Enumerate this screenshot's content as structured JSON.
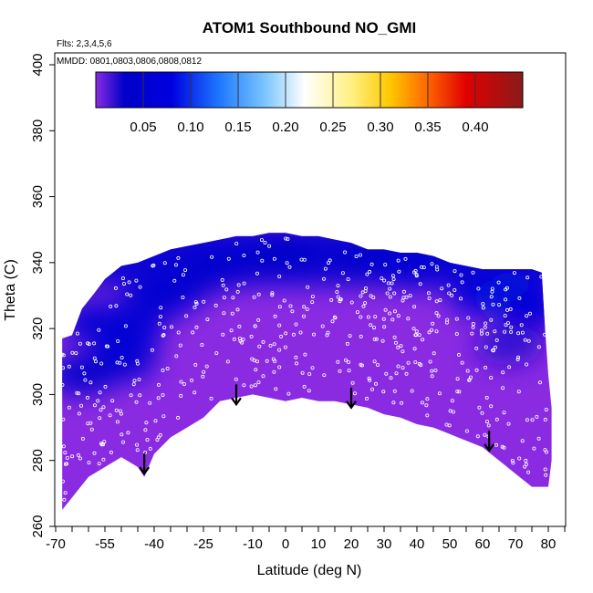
{
  "chart_data": {
    "type": "heatmap",
    "title": "ATOM1 Southbound NO_GMI",
    "subtitle_flights": "Flts: 2,3,4,5,6",
    "subtitle_dates": "MMDD: 0801,0803,0806,0808,0812",
    "xlabel": "Latitude (deg N)",
    "ylabel": "Theta (C)",
    "xlim": [
      -70,
      85
    ],
    "ylim": [
      260,
      402
    ],
    "x_ticks": [
      -70,
      -55,
      -40,
      -25,
      -10,
      0,
      10,
      20,
      30,
      40,
      50,
      60,
      70,
      80
    ],
    "x_tick_labels": [
      "-70",
      "-55",
      "-40",
      "-25",
      "-10",
      "0",
      "10",
      "20",
      "30",
      "40",
      "50",
      "60",
      "70",
      "80"
    ],
    "x_minor_ticks": [
      -65,
      -60,
      -50,
      -45,
      -35,
      -30,
      -20,
      -15,
      -5,
      5,
      15,
      25,
      35,
      45,
      55,
      65,
      75,
      85
    ],
    "y_ticks": [
      260,
      280,
      300,
      320,
      340,
      360,
      380,
      400
    ],
    "y_tick_labels": [
      "260",
      "280",
      "300",
      "320",
      "340",
      "360",
      "380",
      "400"
    ],
    "colorbar": {
      "range": [
        0.0,
        0.45
      ],
      "ticks": [
        0.05,
        0.1,
        0.15,
        0.2,
        0.25,
        0.3,
        0.35,
        0.4
      ],
      "tick_labels": [
        "0.05",
        "0.10",
        "0.15",
        "0.20",
        "0.25",
        "0.30",
        "0.35",
        "0.40"
      ],
      "stops": [
        {
          "v": 0.0,
          "c": "#8a2be2"
        },
        {
          "v": 0.03,
          "c": "#0000c8"
        },
        {
          "v": 0.08,
          "c": "#0000e0"
        },
        {
          "v": 0.13,
          "c": "#1e78ff"
        },
        {
          "v": 0.18,
          "c": "#7fc8ff"
        },
        {
          "v": 0.22,
          "c": "#ffffff"
        },
        {
          "v": 0.27,
          "c": "#fff080"
        },
        {
          "v": 0.31,
          "c": "#ffc800"
        },
        {
          "v": 0.35,
          "c": "#ff6400"
        },
        {
          "v": 0.39,
          "c": "#e00000"
        },
        {
          "v": 0.45,
          "c": "#8b1a1a"
        }
      ]
    },
    "tropopause_arrows": [
      {
        "lat": -43,
        "theta": 276
      },
      {
        "lat": -15,
        "theta": 297
      },
      {
        "lat": 20,
        "theta": 296
      },
      {
        "lat": 62,
        "theta": 283
      }
    ],
    "upper_boundary": [
      [
        -68,
        317
      ],
      [
        -65,
        318
      ],
      [
        -62,
        326
      ],
      [
        -58,
        331
      ],
      [
        -55,
        335
      ],
      [
        -50,
        339
      ],
      [
        -45,
        340
      ],
      [
        -40,
        342
      ],
      [
        -35,
        344
      ],
      [
        -30,
        345
      ],
      [
        -25,
        346
      ],
      [
        -20,
        347
      ],
      [
        -15,
        348
      ],
      [
        -10,
        348
      ],
      [
        -5,
        349
      ],
      [
        0,
        349
      ],
      [
        5,
        348
      ],
      [
        10,
        348
      ],
      [
        15,
        347
      ],
      [
        20,
        346
      ],
      [
        25,
        344
      ],
      [
        30,
        344
      ],
      [
        35,
        343
      ],
      [
        40,
        343
      ],
      [
        45,
        342
      ],
      [
        50,
        340
      ],
      [
        55,
        339
      ],
      [
        60,
        338
      ],
      [
        65,
        338
      ],
      [
        70,
        338
      ],
      [
        75,
        338
      ],
      [
        78,
        337
      ],
      [
        79,
        320
      ],
      [
        80,
        306
      ]
    ],
    "lower_boundary": [
      [
        -68,
        265
      ],
      [
        -60,
        275
      ],
      [
        -50,
        281
      ],
      [
        -45,
        278
      ],
      [
        -43,
        275
      ],
      [
        -40,
        282
      ],
      [
        -35,
        287
      ],
      [
        -30,
        290
      ],
      [
        -25,
        293
      ],
      [
        -20,
        298
      ],
      [
        -15,
        299
      ],
      [
        -10,
        300
      ],
      [
        -5,
        299
      ],
      [
        0,
        298
      ],
      [
        5,
        299
      ],
      [
        10,
        298
      ],
      [
        15,
        298
      ],
      [
        20,
        297
      ],
      [
        25,
        296
      ],
      [
        30,
        294
      ],
      [
        35,
        293
      ],
      [
        40,
        291
      ],
      [
        45,
        290
      ],
      [
        50,
        288
      ],
      [
        55,
        286
      ],
      [
        60,
        284
      ],
      [
        65,
        280
      ],
      [
        70,
        276
      ],
      [
        75,
        272
      ],
      [
        80,
        272
      ],
      [
        81,
        280
      ],
      [
        81,
        296
      ]
    ],
    "no_field_blobs": [
      {
        "lat": -58,
        "theta": 322,
        "val": 0.05
      },
      {
        "lat": -48,
        "theta": 318,
        "val": 0.06
      },
      {
        "lat": -50,
        "theta": 310,
        "val": 0.05
      },
      {
        "lat": -40,
        "theta": 328,
        "val": 0.05
      },
      {
        "lat": -33,
        "theta": 332,
        "val": 0.05
      },
      {
        "lat": -20,
        "theta": 338,
        "val": 0.04
      },
      {
        "lat": 0,
        "theta": 342,
        "val": 0.03
      },
      {
        "lat": 25,
        "theta": 340,
        "val": 0.04
      },
      {
        "lat": 40,
        "theta": 338,
        "val": 0.05
      },
      {
        "lat": 60,
        "theta": 330,
        "val": 0.06
      },
      {
        "lat": 70,
        "theta": 329,
        "val": 0.09
      },
      {
        "lat": 75,
        "theta": 326,
        "val": 0.06
      },
      {
        "lat": -62,
        "theta": 306,
        "val": 0.035
      },
      {
        "lat": 68,
        "theta": 315,
        "val": 0.02
      }
    ]
  }
}
